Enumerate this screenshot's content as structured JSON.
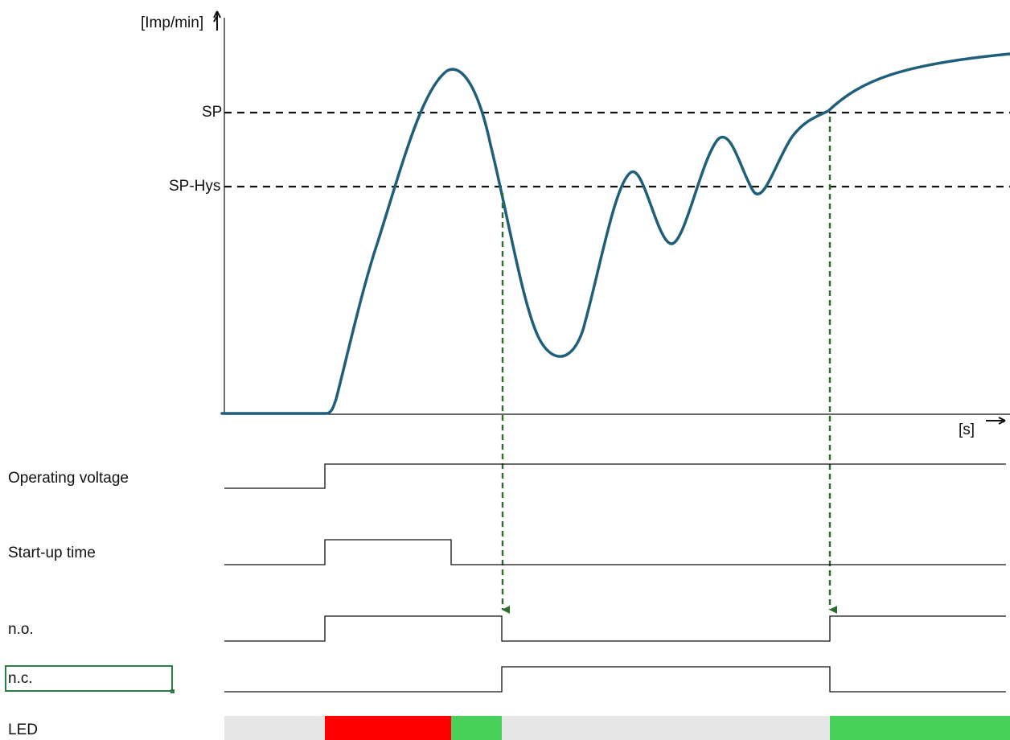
{
  "y_axis_label": "[Imp/min]",
  "x_axis_label": "[s]",
  "thresholds": [
    {
      "label": "SP"
    },
    {
      "label": "SP-Hys"
    }
  ],
  "rows": [
    {
      "key": "operating_voltage",
      "label": "Operating voltage"
    },
    {
      "key": "startup_time",
      "label": "Start-up time"
    },
    {
      "key": "no",
      "label": "n.o."
    },
    {
      "key": "nc",
      "label": "n.c."
    },
    {
      "key": "led",
      "label": "LED"
    }
  ],
  "colors": {
    "curve": "#1f5f7a",
    "arrow": "#2e6b2e",
    "led_off": "#e6e6e6",
    "led_red": "#ff0000",
    "led_green": "#47d15a",
    "selection": "#2e7d46"
  }
}
